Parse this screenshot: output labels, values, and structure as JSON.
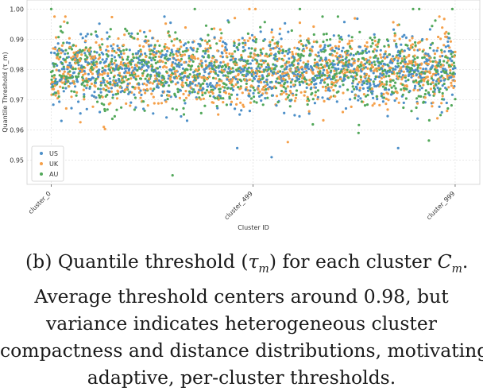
{
  "chart_data": {
    "type": "scatter",
    "title": "",
    "xlabel": "Cluster ID",
    "ylabel": "Quantile Threshold (τ_m)",
    "ylim": [
      0.942,
      1.003
    ],
    "xlim": [
      -60,
      1060
    ],
    "x_ticks": [
      0,
      499,
      999
    ],
    "x_tick_labels": [
      "cluster_0",
      "cluster_499",
      "cluster_999"
    ],
    "y_ticks": [
      0.95,
      0.96,
      0.97,
      0.98,
      0.99,
      1.0
    ],
    "y_tick_labels": [
      "0.95",
      "0.96",
      "0.97",
      "0.98",
      "0.99",
      "1.00"
    ],
    "grid": true,
    "legend_position": "bottom-left",
    "n_clusters_per_series": 1000,
    "series": [
      {
        "name": "US",
        "color": "#4c8fc8",
        "mean": 0.98,
        "std": 0.006,
        "notable_points": [
          [
            25,
            0.963
          ],
          [
            460,
            0.954
          ],
          [
            858,
            0.954
          ],
          [
            545,
            0.951
          ]
        ]
      },
      {
        "name": "UK",
        "color": "#f5a04a",
        "mean": 0.98,
        "std": 0.006,
        "notable_points": [
          [
            490,
            1.0
          ],
          [
            505,
            1.0
          ],
          [
            585,
            0.956
          ],
          [
            130,
            0.961
          ]
        ]
      },
      {
        "name": "AU",
        "color": "#52a85a",
        "mean": 0.98,
        "std": 0.006,
        "notable_points": [
          [
            0,
            1.0
          ],
          [
            355,
            1.0
          ],
          [
            615,
            1.0
          ],
          [
            895,
            1.0
          ],
          [
            910,
            1.0
          ],
          [
            992,
            1.0
          ],
          [
            300,
            0.945
          ],
          [
            760,
            0.959
          ]
        ]
      }
    ]
  },
  "caption": {
    "line1_prefix": "(b) Quantile threshold (",
    "line1_symbol": "τ",
    "line1_sub": "m",
    "line1_mid": ") for each cluster ",
    "line1_C": "C",
    "line1_C_sub": "m",
    "line1_end": ".",
    "line2": "Average threshold centers around 0.98, but",
    "line3": "variance indicates heterogeneous cluster",
    "line4": "compactness and distance distributions, motivating",
    "line5": "adaptive, per-cluster thresholds."
  }
}
